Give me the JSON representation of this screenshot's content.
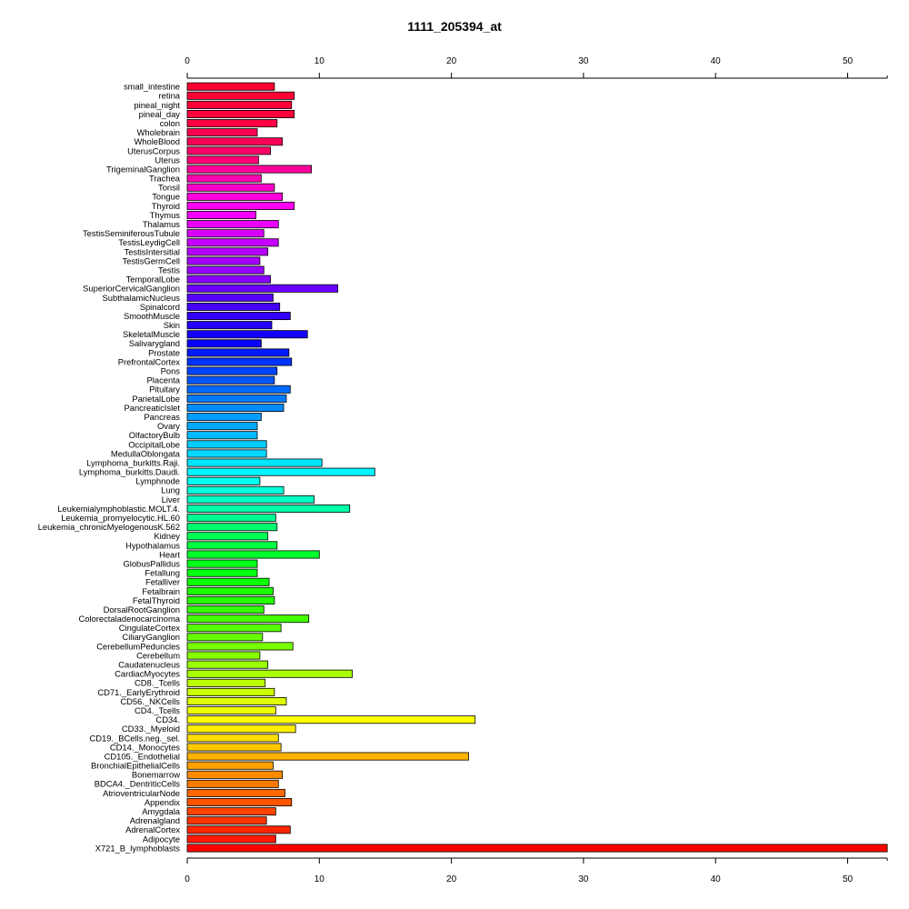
{
  "chart_data": {
    "type": "bar",
    "orientation": "horizontal",
    "title": "1111_205394_at",
    "xlabel": "",
    "ylabel": "",
    "xlim": [
      0,
      53
    ],
    "xticks": [
      0,
      10,
      20,
      30,
      40,
      50
    ],
    "xtick_labels": [
      "0",
      "10",
      "20",
      "30",
      "40",
      "50"
    ],
    "grid": false,
    "legend": "none",
    "categories": [
      "small_intestine",
      "retina",
      "pineal_night",
      "pineal_day",
      "colon",
      "Wholebrain",
      "WholeBlood",
      "UterusCorpus",
      "Uterus",
      "TrigeminalGanglion",
      "Trachea",
      "Tonsil",
      "Tongue",
      "Thyroid",
      "Thymus",
      "Thalamus",
      "TestisSeminiferousTubule",
      "TestisLeydigCell",
      "TestisIntersitial",
      "TestisGermCell",
      "Testis",
      "TemporalLobe",
      "SuperiorCervicalGanglion",
      "SubthalamicNucleus",
      "Spinalcord",
      "SmoothMuscle",
      "Skin",
      "SkeletalMuscle",
      "Salivarygland",
      "Prostate",
      "PrefrontalCortex",
      "Pons",
      "Placenta",
      "Pituitary",
      "ParietalLobe",
      "PancreaticIslet",
      "Pancreas",
      "Ovary",
      "OlfactoryBulb",
      "OccipitalLobe",
      "MedullaOblongata",
      "Lymphoma_burkitts.Raji.",
      "Lymphoma_burkitts.Daudi.",
      "Lymphnode",
      "Lung",
      "Liver",
      "Leukemialymphoblastic.MOLT.4.",
      "Leukemia_promyelocytic.HL.60",
      "Leukemia_chronicMyelogenousK.562",
      "Kidney",
      "Hypothalamus",
      "Heart",
      "GlobusPallidus",
      "Fetallung",
      "Fetalliver",
      "Fetalbrain",
      "FetalThyroid",
      "DorsalRootGanglion",
      "Colorectaladenocarcinoma",
      "CingulateCortex",
      "CiliaryGanglion",
      "CerebellumPeduncles",
      "Cerebellum",
      "Caudatenucleus",
      "CardiacMyocytes",
      "CD8._Tcells",
      "CD71._EarlyErythroid",
      "CD56._NKCells",
      "CD4._Tcells",
      "CD34.",
      "CD33._Myeloid",
      "CD19._BCells.neg._sel.",
      "CD14._Monocytes",
      "CD105._Endothelial",
      "BronchialEpithelialCells",
      "Bonemarrow",
      "BDCA4._DentriticCells",
      "AtrioventricularNode",
      "Appendix",
      "Amygdala",
      "Adrenalgland",
      "AdrenalCortex",
      "Adipocyte",
      "X721_B_lymphoblasts"
    ],
    "values": [
      6.6,
      8.1,
      7.9,
      8.1,
      6.8,
      5.3,
      7.2,
      6.3,
      5.4,
      9.4,
      5.6,
      6.6,
      7.2,
      8.1,
      5.2,
      6.9,
      5.8,
      6.9,
      6.1,
      5.5,
      5.8,
      6.3,
      11.4,
      6.5,
      7.0,
      7.8,
      6.4,
      9.1,
      5.6,
      7.7,
      7.9,
      6.8,
      6.6,
      7.8,
      7.5,
      7.3,
      5.6,
      5.3,
      5.3,
      6.0,
      6.0,
      10.2,
      14.2,
      5.5,
      7.3,
      9.6,
      12.3,
      6.7,
      6.8,
      6.1,
      6.8,
      10.0,
      5.3,
      5.3,
      6.2,
      6.5,
      6.6,
      5.8,
      9.2,
      7.1,
      5.7,
      8.0,
      5.5,
      6.1,
      12.5,
      5.9,
      6.6,
      7.5,
      6.7,
      21.8,
      8.2,
      6.9,
      7.1,
      21.3,
      6.5,
      7.2,
      6.9,
      7.4,
      7.9,
      6.7,
      6.0,
      7.8,
      6.7,
      53.0
    ],
    "colors": [
      "#ff0032",
      "#ff0035",
      "#ff0039",
      "#ff003c",
      "#ff0043",
      "#ff0050",
      "#ff0057",
      "#ff0064",
      "#ff007a",
      "#ff009b",
      "#ff00b0",
      "#ff00c7",
      "#ff00dd",
      "#ff00f0",
      "#f500ff",
      "#ea00ff",
      "#d900ff",
      "#c700ff",
      "#b600ff",
      "#a700ff",
      "#9900ff",
      "#8a00ff",
      "#6b00ff",
      "#5800ff",
      "#4400ff",
      "#3300ff",
      "#2400ff",
      "#1500ff",
      "#0a00ff",
      "#001aff",
      "#0033ff",
      "#0044ff",
      "#0055ff",
      "#006aff",
      "#007aff",
      "#008bff",
      "#009bff",
      "#00abff",
      "#00bbff",
      "#00ccff",
      "#00d9ff",
      "#00e6ff",
      "#00f5ff",
      "#00ffef",
      "#00ffd9",
      "#00ffc4",
      "#00ffaa",
      "#00ff90",
      "#00ff70",
      "#00ff55",
      "#00ff40",
      "#00ff2a",
      "#00ff1a",
      "#00ff0d",
      "#0aff00",
      "#1aff00",
      "#26ff00",
      "#33ff00",
      "#44ff00",
      "#55ff00",
      "#66ff00",
      "#77ff00",
      "#88ff00",
      "#99ff00",
      "#aaff00",
      "#bbff00",
      "#ccff00",
      "#ddff00",
      "#eeff00",
      "#ffff00",
      "#ffee00",
      "#ffdd00",
      "#ffc800",
      "#ffb300",
      "#ffa000",
      "#ff8c00",
      "#ff7a00",
      "#ff6600",
      "#ff5500",
      "#ff4400",
      "#ff3300",
      "#ff2500",
      "#ff1800",
      "#ff0000"
    ]
  }
}
